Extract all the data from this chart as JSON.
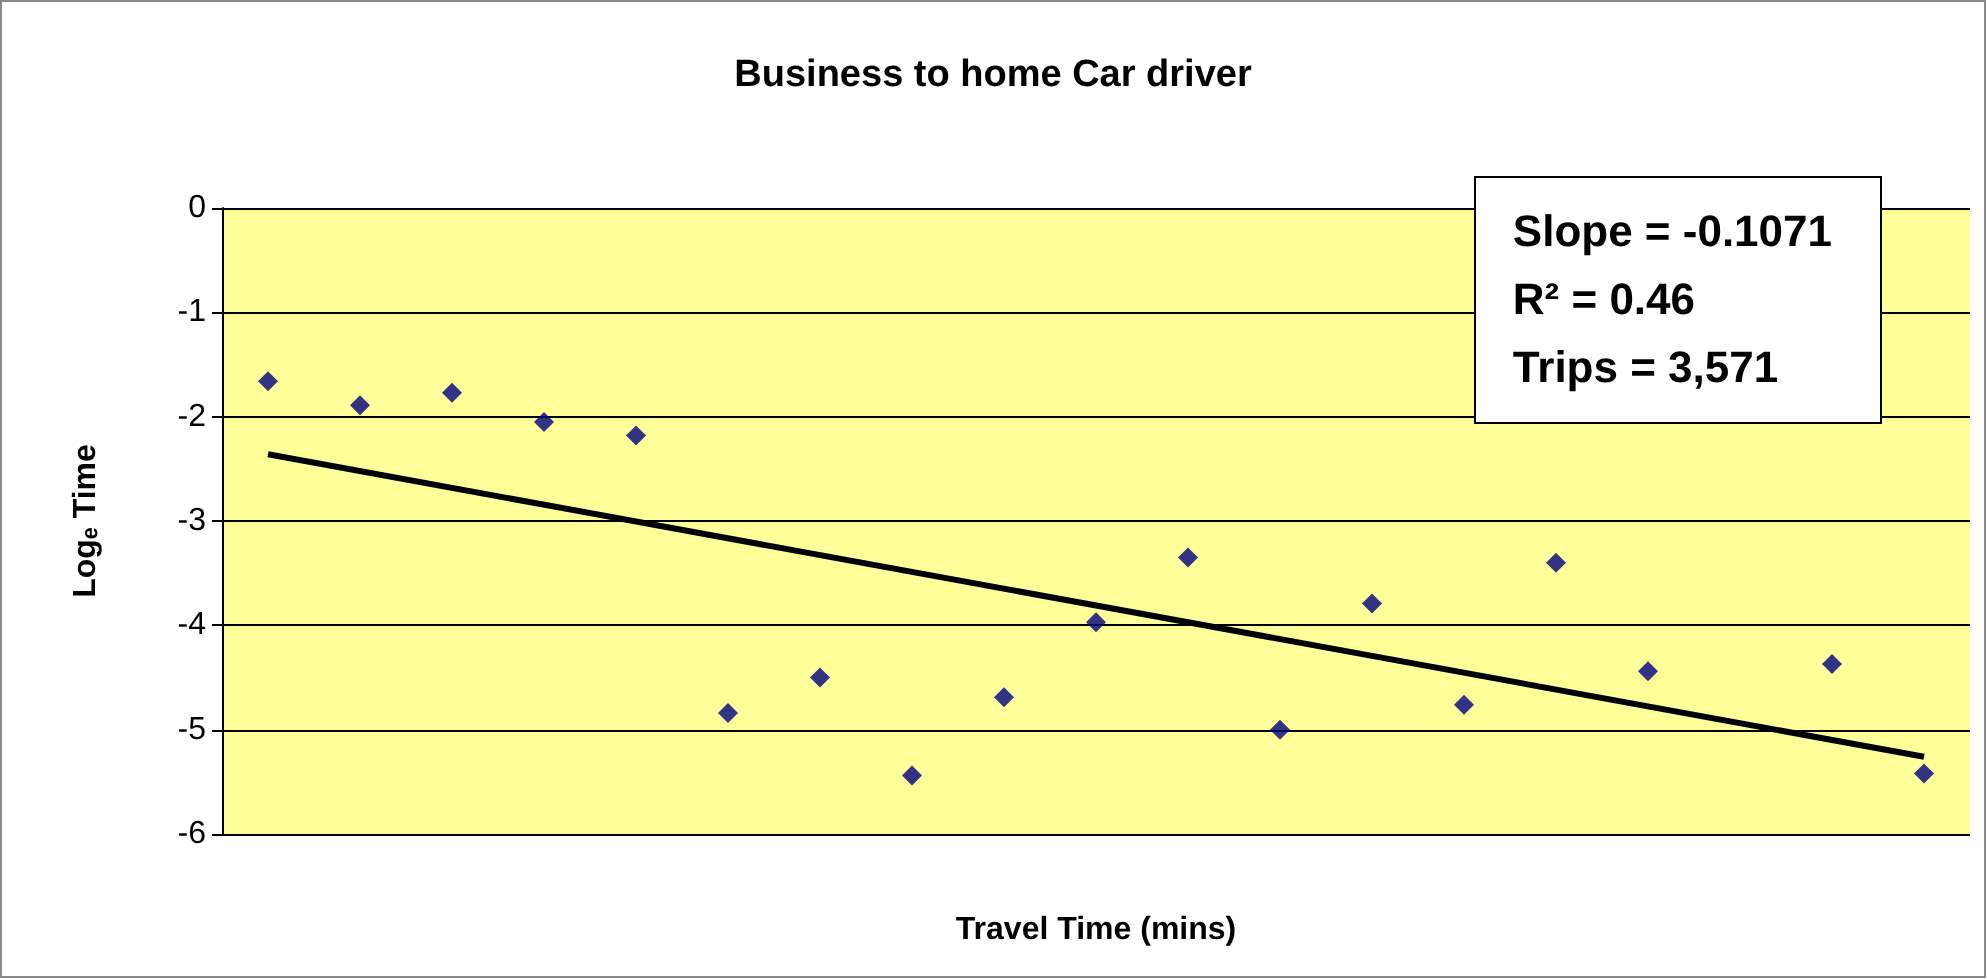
{
  "chart_data": {
    "type": "scatter",
    "title": "Business to home Car driver",
    "xlabel": "Travel Time (mins)",
    "ylabel": "Logₑ Time",
    "categories": [
      null,
      null,
      null,
      null,
      null,
      null,
      null,
      null,
      null,
      null,
      null,
      null,
      null,
      null,
      null,
      null,
      null,
      null,
      null
    ],
    "series": [
      {
        "color": "#000080",
        "marker": "diamond",
        "values": [
          -1.66,
          -1.89,
          -1.77,
          -2.05,
          -2.18,
          -4.84,
          -4.5,
          -5.44,
          -4.69,
          -3.97,
          -3.35,
          -5.0,
          -3.79,
          -4.76,
          -3.4,
          -4.44,
          null,
          -4.37,
          -5.42
        ]
      },
      {
        "type": "line",
        "color": "#000000",
        "marker": "none",
        "values": [
          -2.36,
          null,
          null,
          null,
          null,
          null,
          null,
          null,
          null,
          null,
          null,
          null,
          null,
          null,
          null,
          null,
          null,
          null,
          -5.26
        ]
      }
    ],
    "ylim": [
      -6,
      0
    ],
    "yticks": [
      -6,
      -5,
      -4,
      -3,
      -2,
      -1,
      0
    ],
    "grid": "y",
    "tick_labels": "y",
    "annotations": [
      "Slope = -0.1071",
      "R² = 0.46",
      "Trips = 3,571"
    ]
  }
}
